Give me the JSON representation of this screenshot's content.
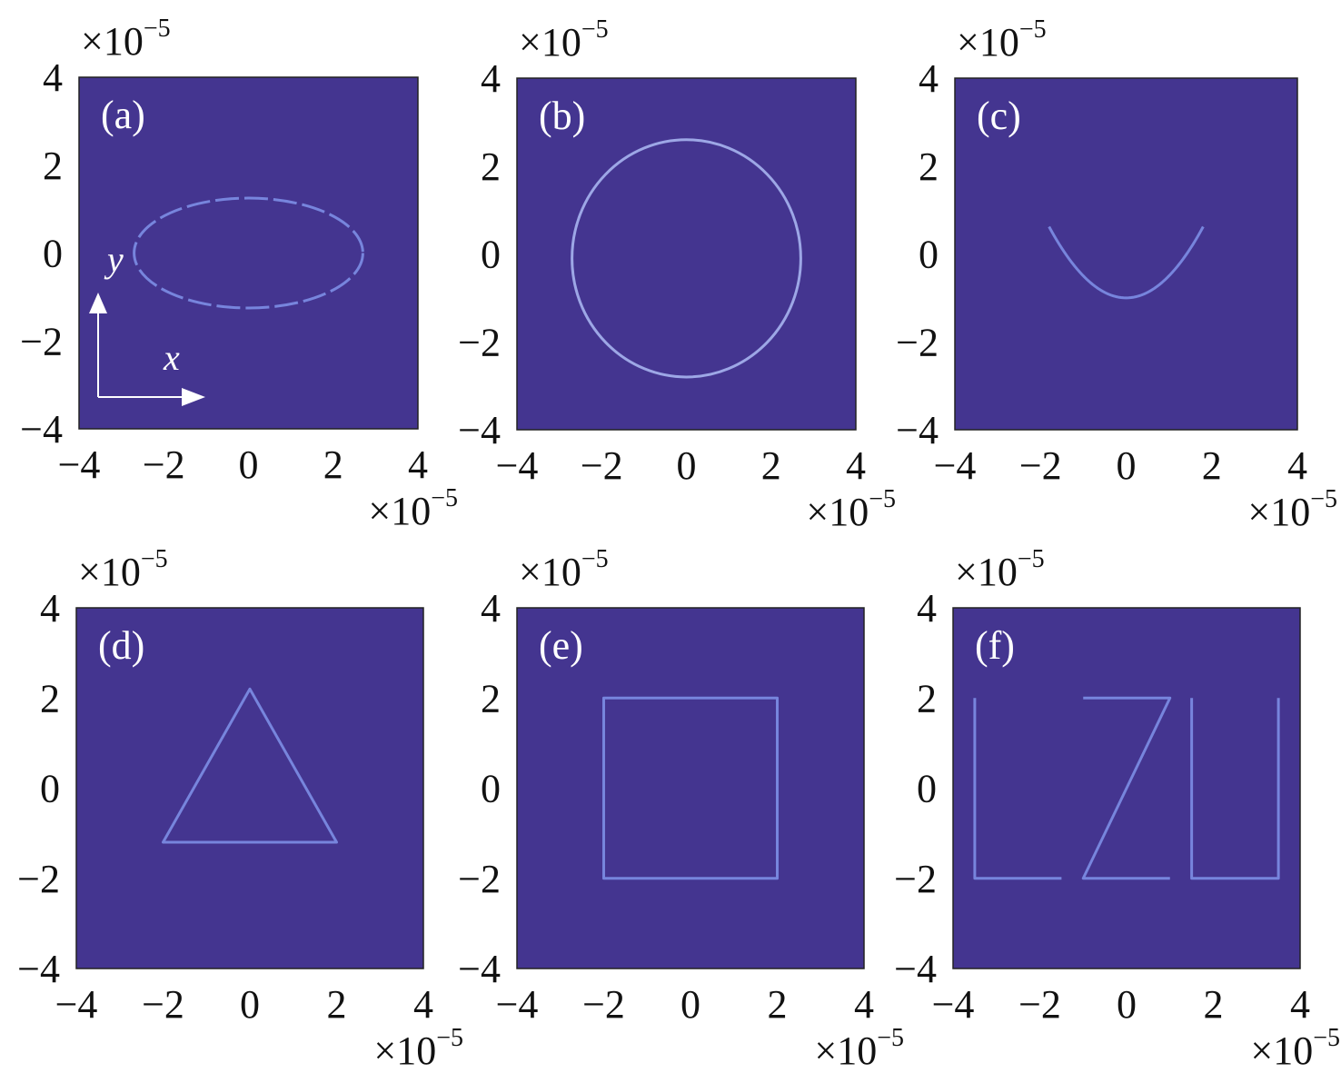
{
  "colors": {
    "background": "#443590",
    "trace": "#7d8ee6",
    "trace_bright": "#a7b4f0",
    "label": "#ffffff"
  },
  "chart_data": [
    {
      "type": "heatmap",
      "panel_label": "(a)",
      "shape": "ellipse",
      "center": [
        0,
        0
      ],
      "semi_axes": [
        2.7,
        1.25
      ],
      "xlim": [
        -4,
        4
      ],
      "ylim": [
        -4,
        4
      ],
      "xticks": [
        "−4",
        "−2",
        "0",
        "2",
        "4"
      ],
      "yticks": [
        "4",
        "2",
        "0",
        "−2",
        "−4"
      ],
      "x_multiplier": "×10",
      "y_multiplier": "×10",
      "exponent": "−5",
      "inset_axes": {
        "x": "x",
        "y": "y"
      }
    },
    {
      "type": "heatmap",
      "panel_label": "(b)",
      "shape": "circle",
      "center": [
        0,
        -0.1
      ],
      "radius": 2.7,
      "xlim": [
        -4,
        4
      ],
      "ylim": [
        -4,
        4
      ],
      "xticks": [
        "−4",
        "−2",
        "0",
        "2",
        "4"
      ],
      "yticks": [
        "4",
        "2",
        "0",
        "−2",
        "−4"
      ],
      "x_multiplier": "×10",
      "y_multiplier": "×10",
      "exponent": "−5"
    },
    {
      "type": "heatmap",
      "panel_label": "(c)",
      "shape": "parabola",
      "equation": "y = 0.5x² − 1",
      "x_range": [
        -1.8,
        1.8
      ],
      "xlim": [
        -4,
        4
      ],
      "ylim": [
        -4,
        4
      ],
      "xticks": [
        "−4",
        "−2",
        "0",
        "2",
        "4"
      ],
      "yticks": [
        "4",
        "2",
        "0",
        "−2",
        "−4"
      ],
      "x_multiplier": "×10",
      "y_multiplier": "×10",
      "exponent": "−5"
    },
    {
      "type": "heatmap",
      "panel_label": "(d)",
      "shape": "triangle",
      "vertices": [
        [
          0,
          2.2
        ],
        [
          -2,
          -1.2
        ],
        [
          2,
          -1.2
        ]
      ],
      "xlim": [
        -4,
        4
      ],
      "ylim": [
        -4,
        4
      ],
      "xticks": [
        "−4",
        "−2",
        "0",
        "2",
        "4"
      ],
      "yticks": [
        "4",
        "2",
        "0",
        "−2",
        "−4"
      ],
      "x_multiplier": "×10",
      "y_multiplier": "×10",
      "exponent": "−5"
    },
    {
      "type": "heatmap",
      "panel_label": "(e)",
      "shape": "square",
      "vertices": [
        [
          -2,
          2
        ],
        [
          2,
          2
        ],
        [
          2,
          -2
        ],
        [
          -2,
          -2
        ]
      ],
      "xlim": [
        -4,
        4
      ],
      "ylim": [
        -4,
        4
      ],
      "xticks": [
        "−4",
        "−2",
        "0",
        "2",
        "4"
      ],
      "yticks": [
        "4",
        "2",
        "0",
        "−2",
        "−4"
      ],
      "x_multiplier": "×10",
      "y_multiplier": "×10",
      "exponent": "−5"
    },
    {
      "type": "heatmap",
      "panel_label": "(f)",
      "shape": "letters LZU",
      "strokes": [
        [
          [
            -3.5,
            2
          ],
          [
            -3.5,
            -2
          ],
          [
            -1.5,
            -2
          ]
        ],
        [
          [
            -1,
            2
          ],
          [
            1,
            2
          ],
          [
            -1,
            -2
          ],
          [
            1,
            -2
          ]
        ],
        [
          [
            1.5,
            2
          ],
          [
            1.5,
            -2
          ],
          [
            3.5,
            -2
          ],
          [
            3.5,
            2
          ]
        ]
      ],
      "xlim": [
        -4,
        4
      ],
      "ylim": [
        -4,
        4
      ],
      "xticks": [
        "−4",
        "−2",
        "0",
        "2",
        "4"
      ],
      "yticks": [
        "4",
        "2",
        "0",
        "−2",
        "−4"
      ],
      "x_multiplier": "×10",
      "y_multiplier": "×10",
      "exponent": "−5"
    }
  ]
}
